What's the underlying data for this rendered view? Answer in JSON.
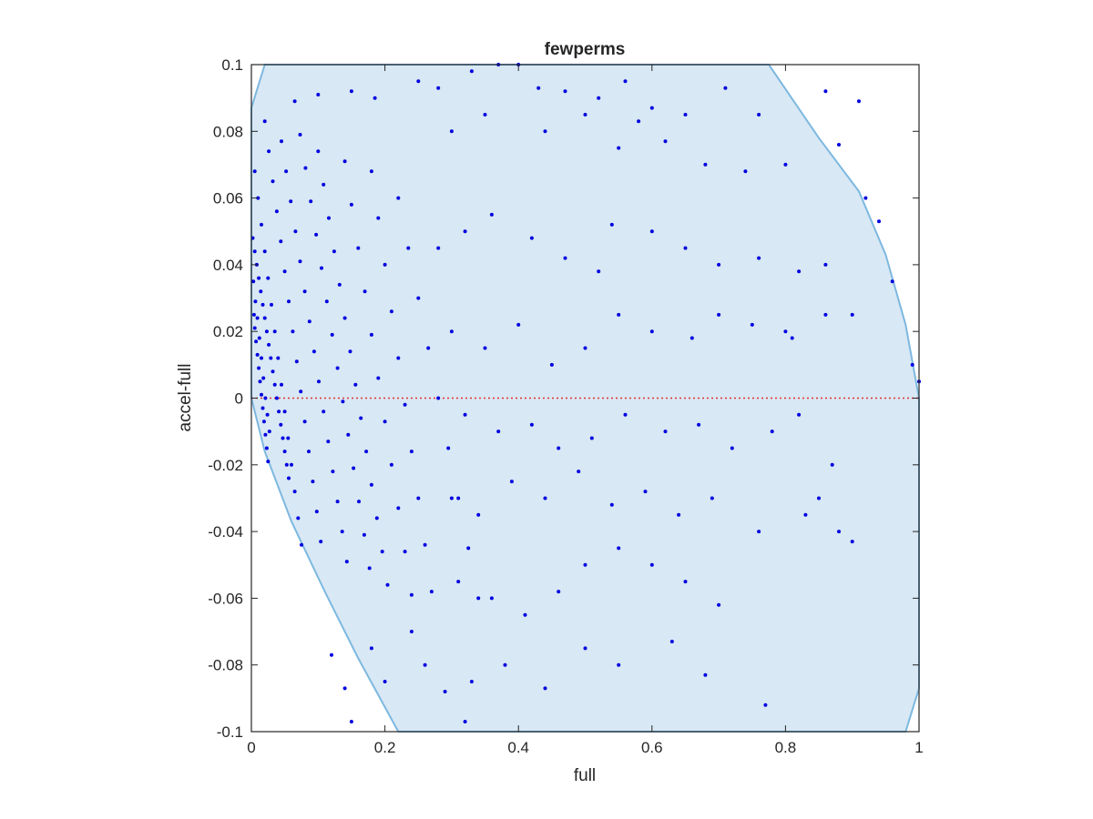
{
  "chart_data": {
    "type": "scatter",
    "title": "fewperms",
    "xlabel": "full",
    "ylabel": "accel-full",
    "xlim": [
      0,
      1
    ],
    "ylim": [
      -0.1,
      0.1
    ],
    "xticks": [
      "0",
      "0.2",
      "0.4",
      "0.6",
      "0.8",
      "1"
    ],
    "yticks": [
      "-0.1",
      "-0.08",
      "-0.06",
      "-0.04",
      "-0.02",
      "0",
      "0.02",
      "0.04",
      "0.06",
      "0.08",
      "0.1"
    ],
    "grid": false,
    "legend": "none",
    "colors": {
      "points": "#0000e0",
      "region_fill": "#d8e8f4",
      "region_edge": "#7db8e0",
      "reference_line": "#e83030",
      "axes": "#262626"
    },
    "reference_line": {
      "y": 0,
      "style": "dotted"
    },
    "region_boundary": [
      [
        0.0,
        0.087
      ],
      [
        0.02,
        0.1
      ],
      [
        0.775,
        0.1
      ],
      [
        0.85,
        0.078
      ],
      [
        0.91,
        0.062
      ],
      [
        0.95,
        0.043
      ],
      [
        0.98,
        0.022
      ],
      [
        1.0,
        0.0
      ],
      [
        1.0,
        -0.087
      ],
      [
        0.98,
        -0.1
      ],
      [
        0.22,
        -0.1
      ],
      [
        0.16,
        -0.078
      ],
      [
        0.11,
        -0.058
      ],
      [
        0.06,
        -0.037
      ],
      [
        0.02,
        -0.016
      ],
      [
        0.0,
        0.0
      ]
    ],
    "series": [
      {
        "values": [
          [
            0.004,
            0.025
          ],
          [
            0.005,
            0.021
          ],
          [
            0.007,
            0.017
          ],
          [
            0.009,
            0.013
          ],
          [
            0.011,
            0.009
          ],
          [
            0.013,
            0.005
          ],
          [
            0.015,
            0.001
          ],
          [
            0.017,
            -0.003
          ],
          [
            0.019,
            -0.007
          ],
          [
            0.021,
            -0.011
          ],
          [
            0.023,
            -0.015
          ],
          [
            0.025,
            -0.019
          ],
          [
            0.002,
            0.048
          ],
          [
            0.005,
            0.044
          ],
          [
            0.008,
            0.04
          ],
          [
            0.011,
            0.036
          ],
          [
            0.014,
            0.032
          ],
          [
            0.017,
            0.028
          ],
          [
            0.02,
            0.024
          ],
          [
            0.023,
            0.02
          ],
          [
            0.026,
            0.016
          ],
          [
            0.029,
            0.012
          ],
          [
            0.032,
            0.008
          ],
          [
            0.035,
            0.004
          ],
          [
            0.038,
            0.0
          ],
          [
            0.041,
            -0.004
          ],
          [
            0.044,
            -0.008
          ],
          [
            0.047,
            -0.012
          ],
          [
            0.05,
            -0.016
          ],
          [
            0.053,
            -0.02
          ],
          [
            0.056,
            -0.024
          ],
          [
            0.005,
            0.068
          ],
          [
            0.01,
            0.06
          ],
          [
            0.015,
            0.052
          ],
          [
            0.02,
            0.044
          ],
          [
            0.025,
            0.036
          ],
          [
            0.03,
            0.028
          ],
          [
            0.035,
            0.02
          ],
          [
            0.04,
            0.012
          ],
          [
            0.045,
            0.004
          ],
          [
            0.05,
            -0.004
          ],
          [
            0.055,
            -0.012
          ],
          [
            0.06,
            -0.02
          ],
          [
            0.065,
            -0.028
          ],
          [
            0.07,
            -0.036
          ],
          [
            0.075,
            -0.044
          ],
          [
            0.02,
            0.083
          ],
          [
            0.026,
            0.074
          ],
          [
            0.032,
            0.065
          ],
          [
            0.038,
            0.056
          ],
          [
            0.044,
            0.047
          ],
          [
            0.05,
            0.038
          ],
          [
            0.056,
            0.029
          ],
          [
            0.062,
            0.02
          ],
          [
            0.068,
            0.011
          ],
          [
            0.074,
            0.002
          ],
          [
            0.08,
            -0.007
          ],
          [
            0.086,
            -0.016
          ],
          [
            0.092,
            -0.025
          ],
          [
            0.098,
            -0.034
          ],
          [
            0.104,
            -0.043
          ],
          [
            0.045,
            0.077
          ],
          [
            0.052,
            0.068
          ],
          [
            0.059,
            0.059
          ],
          [
            0.066,
            0.05
          ],
          [
            0.073,
            0.041
          ],
          [
            0.08,
            0.032
          ],
          [
            0.087,
            0.023
          ],
          [
            0.094,
            0.014
          ],
          [
            0.101,
            0.005
          ],
          [
            0.108,
            -0.004
          ],
          [
            0.115,
            -0.013
          ],
          [
            0.122,
            -0.022
          ],
          [
            0.129,
            -0.031
          ],
          [
            0.136,
            -0.04
          ],
          [
            0.143,
            -0.049
          ],
          [
            0.065,
            0.089
          ],
          [
            0.073,
            0.079
          ],
          [
            0.081,
            0.069
          ],
          [
            0.089,
            0.059
          ],
          [
            0.097,
            0.049
          ],
          [
            0.105,
            0.039
          ],
          [
            0.113,
            0.029
          ],
          [
            0.121,
            0.019
          ],
          [
            0.129,
            0.009
          ],
          [
            0.137,
            -0.001
          ],
          [
            0.145,
            -0.011
          ],
          [
            0.153,
            -0.021
          ],
          [
            0.161,
            -0.031
          ],
          [
            0.169,
            -0.041
          ],
          [
            0.177,
            -0.051
          ],
          [
            0.1,
            0.074
          ],
          [
            0.108,
            0.064
          ],
          [
            0.116,
            0.054
          ],
          [
            0.124,
            0.044
          ],
          [
            0.132,
            0.034
          ],
          [
            0.14,
            0.024
          ],
          [
            0.148,
            0.014
          ],
          [
            0.156,
            0.004
          ],
          [
            0.164,
            -0.006
          ],
          [
            0.172,
            -0.016
          ],
          [
            0.18,
            -0.026
          ],
          [
            0.188,
            -0.036
          ],
          [
            0.196,
            -0.046
          ],
          [
            0.204,
            -0.056
          ],
          [
            0.14,
            0.071
          ],
          [
            0.15,
            0.058
          ],
          [
            0.16,
            0.045
          ],
          [
            0.17,
            0.032
          ],
          [
            0.18,
            0.019
          ],
          [
            0.19,
            0.006
          ],
          [
            0.2,
            -0.007
          ],
          [
            0.21,
            -0.02
          ],
          [
            0.22,
            -0.033
          ],
          [
            0.23,
            -0.046
          ],
          [
            0.24,
            -0.059
          ],
          [
            0.18,
            0.068
          ],
          [
            0.19,
            0.054
          ],
          [
            0.2,
            0.04
          ],
          [
            0.21,
            0.026
          ],
          [
            0.22,
            0.012
          ],
          [
            0.23,
            -0.002
          ],
          [
            0.24,
            -0.016
          ],
          [
            0.25,
            -0.03
          ],
          [
            0.26,
            -0.044
          ],
          [
            0.27,
            -0.058
          ],
          [
            0.22,
            0.06
          ],
          [
            0.235,
            0.045
          ],
          [
            0.25,
            0.03
          ],
          [
            0.265,
            0.015
          ],
          [
            0.28,
            0.0
          ],
          [
            0.295,
            -0.015
          ],
          [
            0.31,
            -0.03
          ],
          [
            0.325,
            -0.045
          ],
          [
            0.34,
            -0.06
          ],
          [
            0.003,
            0.035
          ],
          [
            0.006,
            0.029
          ],
          [
            0.009,
            0.024
          ],
          [
            0.012,
            0.018
          ],
          [
            0.015,
            0.012
          ],
          [
            0.018,
            0.006
          ],
          [
            0.021,
            0.0
          ],
          [
            0.024,
            -0.005
          ],
          [
            0.027,
            -0.01
          ],
          [
            0.1,
            0.091
          ],
          [
            0.15,
            0.092
          ],
          [
            0.185,
            0.09
          ],
          [
            0.25,
            0.095
          ],
          [
            0.28,
            0.093
          ],
          [
            0.33,
            0.098
          ],
          [
            0.37,
            0.1
          ],
          [
            0.4,
            0.1
          ],
          [
            0.43,
            0.093
          ],
          [
            0.47,
            0.092
          ],
          [
            0.52,
            0.09
          ],
          [
            0.56,
            0.095
          ],
          [
            0.6,
            0.087
          ],
          [
            0.65,
            0.085
          ],
          [
            0.71,
            0.093
          ],
          [
            0.76,
            0.085
          ],
          [
            0.3,
            0.08
          ],
          [
            0.35,
            0.085
          ],
          [
            0.44,
            0.08
          ],
          [
            0.5,
            0.085
          ],
          [
            0.55,
            0.075
          ],
          [
            0.58,
            0.083
          ],
          [
            0.62,
            0.077
          ],
          [
            0.68,
            0.07
          ],
          [
            0.74,
            0.068
          ],
          [
            0.8,
            0.07
          ],
          [
            0.28,
            0.045
          ],
          [
            0.32,
            0.05
          ],
          [
            0.36,
            0.055
          ],
          [
            0.42,
            0.048
          ],
          [
            0.47,
            0.042
          ],
          [
            0.52,
            0.038
          ],
          [
            0.54,
            0.052
          ],
          [
            0.6,
            0.05
          ],
          [
            0.65,
            0.045
          ],
          [
            0.7,
            0.04
          ],
          [
            0.76,
            0.042
          ],
          [
            0.82,
            0.038
          ],
          [
            0.3,
            0.02
          ],
          [
            0.35,
            0.015
          ],
          [
            0.4,
            0.022
          ],
          [
            0.45,
            0.01
          ],
          [
            0.5,
            0.015
          ],
          [
            0.55,
            0.025
          ],
          [
            0.6,
            0.02
          ],
          [
            0.66,
            0.018
          ],
          [
            0.7,
            0.025
          ],
          [
            0.75,
            0.022
          ],
          [
            0.8,
            0.02
          ],
          [
            0.86,
            0.025
          ],
          [
            0.32,
            -0.005
          ],
          [
            0.37,
            -0.01
          ],
          [
            0.42,
            -0.008
          ],
          [
            0.46,
            -0.015
          ],
          [
            0.51,
            -0.012
          ],
          [
            0.56,
            -0.005
          ],
          [
            0.62,
            -0.01
          ],
          [
            0.67,
            -0.008
          ],
          [
            0.72,
            -0.015
          ],
          [
            0.78,
            -0.01
          ],
          [
            0.82,
            -0.005
          ],
          [
            0.3,
            -0.03
          ],
          [
            0.34,
            -0.035
          ],
          [
            0.39,
            -0.025
          ],
          [
            0.44,
            -0.03
          ],
          [
            0.49,
            -0.022
          ],
          [
            0.54,
            -0.032
          ],
          [
            0.59,
            -0.028
          ],
          [
            0.64,
            -0.035
          ],
          [
            0.69,
            -0.03
          ],
          [
            0.76,
            -0.04
          ],
          [
            0.83,
            -0.035
          ],
          [
            0.9,
            -0.043
          ],
          [
            0.31,
            -0.055
          ],
          [
            0.36,
            -0.06
          ],
          [
            0.41,
            -0.065
          ],
          [
            0.46,
            -0.058
          ],
          [
            0.5,
            -0.05
          ],
          [
            0.55,
            -0.045
          ],
          [
            0.6,
            -0.05
          ],
          [
            0.65,
            -0.055
          ],
          [
            0.7,
            -0.062
          ],
          [
            0.29,
            -0.088
          ],
          [
            0.33,
            -0.085
          ],
          [
            0.38,
            -0.08
          ],
          [
            0.44,
            -0.087
          ],
          [
            0.5,
            -0.075
          ],
          [
            0.55,
            -0.08
          ],
          [
            0.63,
            -0.073
          ],
          [
            0.68,
            -0.083
          ],
          [
            0.77,
            -0.092
          ],
          [
            0.12,
            -0.077
          ],
          [
            0.14,
            -0.087
          ],
          [
            0.15,
            -0.097
          ],
          [
            0.18,
            -0.075
          ],
          [
            0.2,
            -0.085
          ],
          [
            0.24,
            -0.07
          ],
          [
            0.26,
            -0.08
          ],
          [
            0.32,
            -0.097
          ],
          [
            0.86,
            0.092
          ],
          [
            0.91,
            0.089
          ],
          [
            0.88,
            0.076
          ],
          [
            0.92,
            0.06
          ],
          [
            0.94,
            0.053
          ],
          [
            0.96,
            0.035
          ],
          [
            0.99,
            0.01
          ],
          [
            1.0,
            0.005
          ],
          [
            0.87,
            -0.02
          ],
          [
            0.85,
            -0.03
          ],
          [
            0.88,
            -0.04
          ],
          [
            0.81,
            0.018
          ],
          [
            0.86,
            0.04
          ],
          [
            0.9,
            0.025
          ]
        ]
      }
    ]
  }
}
